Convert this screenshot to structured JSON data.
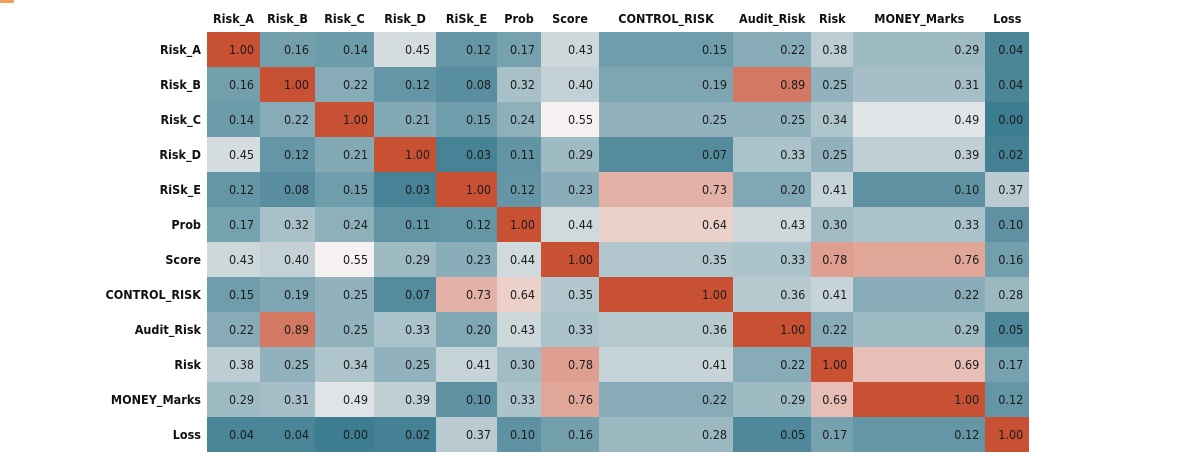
{
  "chart_data": {
    "type": "heatmap",
    "title": "",
    "columns": [
      "Risk_A",
      "Risk_B",
      "Risk_C",
      "Risk_D",
      "RiSk_E",
      "Prob",
      "Score",
      "CONTROL_RISK",
      "Audit_Risk",
      "Risk",
      "MONEY_Marks",
      "Loss"
    ],
    "rows": [
      "Risk_A",
      "Risk_B",
      "Risk_C",
      "Risk_D",
      "RiSk_E",
      "Prob",
      "Score",
      "CONTROL_RISK",
      "Audit_Risk",
      "Risk",
      "MONEY_Marks",
      "Loss"
    ],
    "values": [
      [
        1.0,
        0.16,
        0.14,
        0.45,
        0.12,
        0.17,
        0.43,
        0.15,
        0.22,
        0.38,
        0.29,
        0.04
      ],
      [
        0.16,
        1.0,
        0.22,
        0.12,
        0.08,
        0.32,
        0.4,
        0.19,
        0.89,
        0.25,
        0.31,
        0.04
      ],
      [
        0.14,
        0.22,
        1.0,
        0.21,
        0.15,
        0.24,
        0.55,
        0.25,
        0.25,
        0.34,
        0.49,
        0.0
      ],
      [
        0.45,
        0.12,
        0.21,
        1.0,
        0.03,
        0.11,
        0.29,
        0.07,
        0.33,
        0.25,
        0.39,
        0.02
      ],
      [
        0.12,
        0.08,
        0.15,
        0.03,
        1.0,
        0.12,
        0.23,
        0.73,
        0.2,
        0.41,
        0.1,
        0.37
      ],
      [
        0.17,
        0.32,
        0.24,
        0.11,
        0.12,
        1.0,
        0.44,
        0.64,
        0.43,
        0.3,
        0.33,
        0.1
      ],
      [
        0.43,
        0.4,
        0.55,
        0.29,
        0.23,
        0.44,
        1.0,
        0.35,
        0.33,
        0.78,
        0.76,
        0.16
      ],
      [
        0.15,
        0.19,
        0.25,
        0.07,
        0.73,
        0.64,
        0.35,
        1.0,
        0.36,
        0.41,
        0.22,
        0.28
      ],
      [
        0.22,
        0.89,
        0.25,
        0.33,
        0.2,
        0.43,
        0.33,
        0.36,
        1.0,
        0.22,
        0.29,
        0.05
      ],
      [
        0.38,
        0.25,
        0.34,
        0.25,
        0.41,
        0.3,
        0.78,
        0.41,
        0.22,
        1.0,
        0.69,
        0.17
      ],
      [
        0.29,
        0.31,
        0.49,
        0.39,
        0.1,
        0.33,
        0.76,
        0.22,
        0.29,
        0.69,
        1.0,
        0.12
      ],
      [
        0.04,
        0.04,
        0.0,
        0.02,
        0.37,
        0.1,
        0.16,
        0.28,
        0.05,
        0.17,
        0.12,
        1.0
      ]
    ],
    "colormap": {
      "low": "#3d7d91",
      "mid": "#f5f1f0",
      "high": "#c85134"
    },
    "value_format": "0.00"
  }
}
